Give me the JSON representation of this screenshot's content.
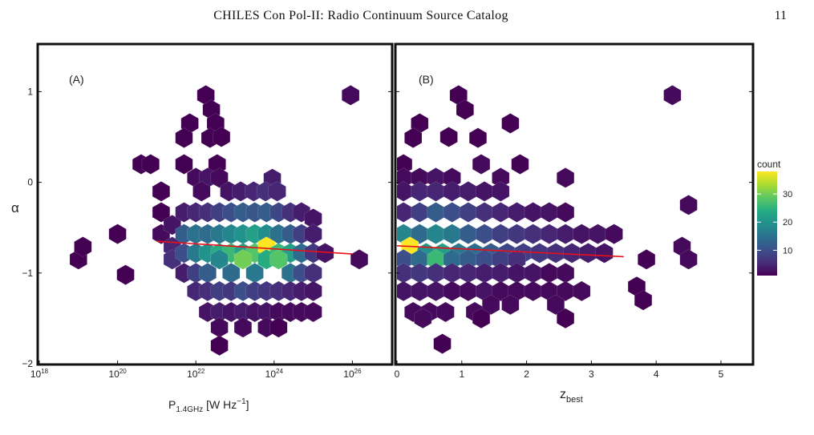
{
  "header": {
    "running_title": "CHILES Con Pol-II: Radio Continuum Source Catalog",
    "page_number": "11"
  },
  "chart_data": [
    {
      "type": "heatmap",
      "panel_label": "(A)",
      "ylabel": "α",
      "xlabel": "P1.4GHz [W Hz⁻¹]",
      "xlabel_main": "P",
      "xlabel_sub": "1.4GHz",
      "xlabel_unit": " [W Hz",
      "xlabel_sup": "−1",
      "xlabel_close": "]",
      "x_scale": "log",
      "xlim": [
        1e+18,
        1e+27
      ],
      "ylim": [
        -2,
        1.5
      ],
      "x_ticks": [
        1e+18,
        1e+20,
        1e+22,
        1e+24,
        1e+26
      ],
      "x_tick_labels": [
        [
          "10",
          "18"
        ],
        [
          "10",
          "20"
        ],
        [
          "10",
          "22"
        ],
        [
          "10",
          "24"
        ],
        [
          "10",
          "26"
        ]
      ],
      "y_ticks": [
        -2,
        -1,
        0,
        1
      ],
      "y_tick_labels": [
        "−2",
        "−1",
        "0",
        "1"
      ],
      "grid": false,
      "fit_line": {
        "color": "#e8101a",
        "points": [
          [
            1e+21,
            -0.65
          ],
          [
            1e+26,
            -0.79
          ]
        ]
      },
      "bins": [
        [
          1e+19,
          -0.85,
          1
        ],
        [
          1e+20,
          -0.57,
          1
        ],
        [
          1.6e+20,
          -1.02,
          1
        ],
        [
          1.3e+19,
          -0.71,
          1
        ],
        [
          4e+20,
          0.2,
          1
        ],
        [
          7e+20,
          0.2,
          1
        ],
        [
          1.3e+21,
          -0.1,
          1
        ],
        [
          1.3e+21,
          -0.33,
          1
        ],
        [
          1.3e+21,
          -0.57,
          2
        ],
        [
          1.8e+22,
          0.96,
          1
        ],
        [
          2.5e+22,
          0.8,
          1
        ],
        [
          3.2e+22,
          0.65,
          1
        ],
        [
          2.3e+22,
          0.49,
          1
        ],
        [
          7e+21,
          0.65,
          1
        ],
        [
          5e+21,
          0.49,
          1
        ],
        [
          3.5e+22,
          0.2,
          1
        ],
        [
          4.5e+22,
          0.5,
          1
        ],
        [
          5e+21,
          0.2,
          1
        ],
        [
          1e+22,
          0.05,
          2
        ],
        [
          2e+22,
          0.05,
          3
        ],
        [
          4e+22,
          0.05,
          2
        ],
        [
          9e+23,
          0.04,
          4
        ],
        [
          1.4e+22,
          -0.1,
          2
        ],
        [
          7e+22,
          -0.1,
          3
        ],
        [
          1.4e+23,
          -0.1,
          4
        ],
        [
          3e+23,
          -0.1,
          5
        ],
        [
          6e+23,
          -0.1,
          6
        ],
        [
          1.2e+24,
          -0.1,
          5
        ],
        [
          2.5e+21,
          -0.47,
          3
        ],
        [
          5e+21,
          -0.33,
          4
        ],
        [
          1e+22,
          -0.33,
          5
        ],
        [
          2e+22,
          -0.33,
          6
        ],
        [
          4e+22,
          -0.33,
          8
        ],
        [
          8e+22,
          -0.33,
          10
        ],
        [
          1.6e+23,
          -0.33,
          12
        ],
        [
          3.2e+23,
          -0.33,
          11
        ],
        [
          6.4e+23,
          -0.33,
          12
        ],
        [
          1.3e+24,
          -0.33,
          9
        ],
        [
          2.6e+24,
          -0.33,
          6
        ],
        [
          5e+24,
          -0.33,
          4
        ],
        [
          1e+25,
          -0.4,
          3
        ],
        [
          2.5e+21,
          -0.71,
          5
        ],
        [
          5e+21,
          -0.57,
          12
        ],
        [
          1e+22,
          -0.57,
          15
        ],
        [
          2e+22,
          -0.57,
          14
        ],
        [
          4e+22,
          -0.57,
          16
        ],
        [
          8e+22,
          -0.57,
          18
        ],
        [
          1.6e+23,
          -0.57,
          20
        ],
        [
          3.2e+23,
          -0.57,
          22
        ],
        [
          6.4e+23,
          -0.57,
          19
        ],
        [
          1.3e+24,
          -0.57,
          15
        ],
        [
          2.6e+24,
          -0.57,
          12
        ],
        [
          5e+24,
          -0.57,
          8
        ],
        [
          1e+25,
          -0.57,
          4
        ],
        [
          2.5e+21,
          -0.85,
          6
        ],
        [
          5e+21,
          -0.78,
          10
        ],
        [
          1e+22,
          -0.78,
          16
        ],
        [
          2e+22,
          -0.78,
          20
        ],
        [
          4e+22,
          -0.78,
          24
        ],
        [
          8e+22,
          -0.78,
          26
        ],
        [
          1.6e+23,
          -0.78,
          22
        ],
        [
          3.2e+23,
          -0.78,
          28
        ],
        [
          6.4e+23,
          -0.71,
          38
        ],
        [
          1.3e+24,
          -0.78,
          26
        ],
        [
          2.6e+24,
          -0.78,
          22
        ],
        [
          5e+24,
          -0.78,
          14
        ],
        [
          1e+25,
          -0.78,
          7
        ],
        [
          2e+25,
          -0.78,
          3
        ],
        [
          5e+21,
          -1.0,
          4
        ],
        [
          1e+22,
          -1.0,
          8
        ],
        [
          2e+22,
          -1.0,
          12
        ],
        [
          4e+22,
          -0.85,
          18
        ],
        [
          8e+22,
          -1.0,
          14
        ],
        [
          1.6e+23,
          -0.85,
          30
        ],
        [
          3.2e+23,
          -1.0,
          16
        ],
        [
          6.4e+23,
          -0.85,
          24
        ],
        [
          1.3e+24,
          -0.85,
          28
        ],
        [
          2.6e+24,
          -1.0,
          15
        ],
        [
          5e+24,
          -1.0,
          10
        ],
        [
          1e+25,
          -1.0,
          6
        ],
        [
          1e+22,
          -1.2,
          5
        ],
        [
          2e+22,
          -1.2,
          6
        ],
        [
          4e+22,
          -1.2,
          8
        ],
        [
          8e+22,
          -1.2,
          7
        ],
        [
          1.6e+23,
          -1.2,
          10
        ],
        [
          3.2e+23,
          -1.2,
          8
        ],
        [
          6.4e+23,
          -1.2,
          7
        ],
        [
          1.3e+24,
          -1.2,
          6
        ],
        [
          2.6e+24,
          -1.2,
          5
        ],
        [
          5e+24,
          -1.2,
          4
        ],
        [
          1e+25,
          -1.2,
          3
        ],
        [
          2e+22,
          -1.43,
          3
        ],
        [
          4e+22,
          -1.43,
          4
        ],
        [
          8e+22,
          -1.43,
          3
        ],
        [
          1.6e+23,
          -1.43,
          4
        ],
        [
          3.2e+23,
          -1.43,
          3
        ],
        [
          6.4e+23,
          -1.43,
          3
        ],
        [
          1.3e+24,
          -1.43,
          2
        ],
        [
          2.6e+24,
          -1.43,
          2
        ],
        [
          5e+24,
          -1.43,
          2
        ],
        [
          1e+25,
          -1.43,
          2
        ],
        [
          4e+22,
          -1.6,
          2
        ],
        [
          1.6e+23,
          -1.6,
          2
        ],
        [
          6.4e+23,
          -1.6,
          2
        ],
        [
          1.3e+24,
          -1.6,
          1
        ],
        [
          4e+22,
          -1.8,
          1
        ],
        [
          1.5e+26,
          -0.85,
          2
        ],
        [
          9e+25,
          0.96,
          2
        ]
      ]
    },
    {
      "type": "heatmap",
      "panel_label": "(B)",
      "xlabel": "zbest",
      "xlabel_main": "z",
      "xlabel_sub": "best",
      "x_scale": "linear",
      "xlim": [
        0,
        5.5
      ],
      "ylim": [
        -2,
        1.5
      ],
      "x_ticks": [
        0,
        1,
        2,
        3,
        4,
        5
      ],
      "x_tick_labels": [
        "0",
        "1",
        "2",
        "3",
        "4",
        "5"
      ],
      "y_ticks": [
        -2,
        -1,
        0,
        1
      ],
      "grid": false,
      "fit_line": {
        "color": "#e8101a",
        "points": [
          [
            0,
            -0.7
          ],
          [
            3.5,
            -0.82
          ]
        ]
      },
      "bins": [
        [
          0.95,
          0.96,
          1
        ],
        [
          1.05,
          0.8,
          1
        ],
        [
          0.35,
          0.65,
          1
        ],
        [
          1.75,
          0.65,
          1
        ],
        [
          0.25,
          0.49,
          1
        ],
        [
          0.8,
          0.5,
          1
        ],
        [
          1.25,
          0.49,
          1
        ],
        [
          1.3,
          0.2,
          2
        ],
        [
          1.9,
          0.2,
          1
        ],
        [
          2.6,
          0.05,
          2
        ],
        [
          4.25,
          0.96,
          2
        ],
        [
          0.1,
          0.2,
          1
        ],
        [
          0.1,
          0.05,
          2
        ],
        [
          0.35,
          0.05,
          2
        ],
        [
          0.6,
          0.05,
          3
        ],
        [
          0.85,
          0.05,
          2
        ],
        [
          1.6,
          0.05,
          2
        ],
        [
          0.1,
          -0.1,
          3
        ],
        [
          0.35,
          -0.1,
          5
        ],
        [
          0.6,
          -0.1,
          5
        ],
        [
          0.85,
          -0.1,
          4
        ],
        [
          1.1,
          -0.1,
          4
        ],
        [
          1.35,
          -0.1,
          3
        ],
        [
          1.6,
          -0.1,
          3
        ],
        [
          0.1,
          -0.33,
          5
        ],
        [
          0.35,
          -0.33,
          8
        ],
        [
          0.6,
          -0.33,
          12
        ],
        [
          0.85,
          -0.33,
          10
        ],
        [
          1.1,
          -0.33,
          8
        ],
        [
          1.35,
          -0.33,
          6
        ],
        [
          1.6,
          -0.33,
          5
        ],
        [
          1.85,
          -0.33,
          4
        ],
        [
          2.1,
          -0.33,
          3
        ],
        [
          2.35,
          -0.33,
          3
        ],
        [
          2.6,
          -0.33,
          2
        ],
        [
          4.5,
          -0.25,
          2
        ],
        [
          0.1,
          -0.57,
          18
        ],
        [
          0.35,
          -0.57,
          14
        ],
        [
          0.6,
          -0.57,
          18
        ],
        [
          0.85,
          -0.57,
          16
        ],
        [
          1.1,
          -0.57,
          12
        ],
        [
          1.35,
          -0.57,
          10
        ],
        [
          1.6,
          -0.57,
          8
        ],
        [
          1.85,
          -0.57,
          7
        ],
        [
          2.1,
          -0.57,
          6
        ],
        [
          2.35,
          -0.57,
          5
        ],
        [
          2.6,
          -0.57,
          4
        ],
        [
          2.85,
          -0.57,
          3
        ],
        [
          3.1,
          -0.57,
          3
        ],
        [
          3.35,
          -0.57,
          2
        ],
        [
          0.2,
          -0.71,
          38
        ],
        [
          0.45,
          -0.78,
          20
        ],
        [
          0.7,
          -0.78,
          22
        ],
        [
          0.95,
          -0.78,
          16
        ],
        [
          1.2,
          -0.78,
          14
        ],
        [
          1.45,
          -0.78,
          12
        ],
        [
          1.7,
          -0.78,
          9
        ],
        [
          1.95,
          -0.78,
          8
        ],
        [
          2.2,
          -0.78,
          7
        ],
        [
          2.45,
          -0.78,
          6
        ],
        [
          2.7,
          -0.78,
          5
        ],
        [
          2.95,
          -0.78,
          4
        ],
        [
          3.2,
          -0.78,
          3
        ],
        [
          0.1,
          -0.85,
          10
        ],
        [
          0.35,
          -0.85,
          14
        ],
        [
          0.6,
          -0.85,
          26
        ],
        [
          0.85,
          -0.85,
          14
        ],
        [
          1.1,
          -0.85,
          12
        ],
        [
          1.35,
          -0.85,
          10
        ],
        [
          1.6,
          -0.85,
          8
        ],
        [
          1.85,
          -0.85,
          6
        ],
        [
          4.4,
          -0.71,
          2
        ],
        [
          4.5,
          -0.85,
          2
        ],
        [
          3.85,
          -0.85,
          1
        ],
        [
          0.1,
          -1.0,
          6
        ],
        [
          0.35,
          -1.0,
          7
        ],
        [
          0.6,
          -1.0,
          6
        ],
        [
          0.85,
          -1.0,
          5
        ],
        [
          1.1,
          -1.0,
          5
        ],
        [
          1.35,
          -1.0,
          4
        ],
        [
          1.6,
          -1.0,
          4
        ],
        [
          1.85,
          -1.0,
          3
        ],
        [
          2.1,
          -1.0,
          3
        ],
        [
          2.35,
          -1.0,
          2
        ],
        [
          2.6,
          -1.0,
          2
        ],
        [
          0.1,
          -1.2,
          3
        ],
        [
          0.35,
          -1.2,
          3
        ],
        [
          0.6,
          -1.2,
          3
        ],
        [
          0.85,
          -1.2,
          2
        ],
        [
          1.1,
          -1.2,
          2
        ],
        [
          1.35,
          -1.2,
          3
        ],
        [
          1.6,
          -1.2,
          2
        ],
        [
          1.85,
          -1.2,
          2
        ],
        [
          2.1,
          -1.2,
          2
        ],
        [
          2.35,
          -1.2,
          2
        ],
        [
          2.6,
          -1.2,
          2
        ],
        [
          2.85,
          -1.2,
          2
        ],
        [
          3.7,
          -1.15,
          1
        ],
        [
          0.25,
          -1.43,
          2
        ],
        [
          0.5,
          -1.43,
          2
        ],
        [
          0.75,
          -1.43,
          2
        ],
        [
          1.2,
          -1.43,
          2
        ],
        [
          1.45,
          -1.35,
          2
        ],
        [
          1.75,
          -1.35,
          2
        ],
        [
          2.45,
          -1.35,
          2
        ],
        [
          3.8,
          -1.3,
          1
        ],
        [
          0.4,
          -1.5,
          2
        ],
        [
          1.3,
          -1.5,
          1
        ],
        [
          2.6,
          -1.5,
          1
        ],
        [
          0.7,
          -1.78,
          1
        ]
      ]
    }
  ],
  "colorbar": {
    "title": "count",
    "ticks": [
      10,
      20,
      30
    ],
    "tick_labels": [
      "10",
      "20",
      "30"
    ],
    "range": [
      1,
      38
    ],
    "colormap": "viridis",
    "stops": [
      "#440154",
      "#472c7a",
      "#3b518b",
      "#2c718e",
      "#21908d",
      "#27ad81",
      "#5cc863",
      "#aadc32",
      "#fde725"
    ]
  }
}
